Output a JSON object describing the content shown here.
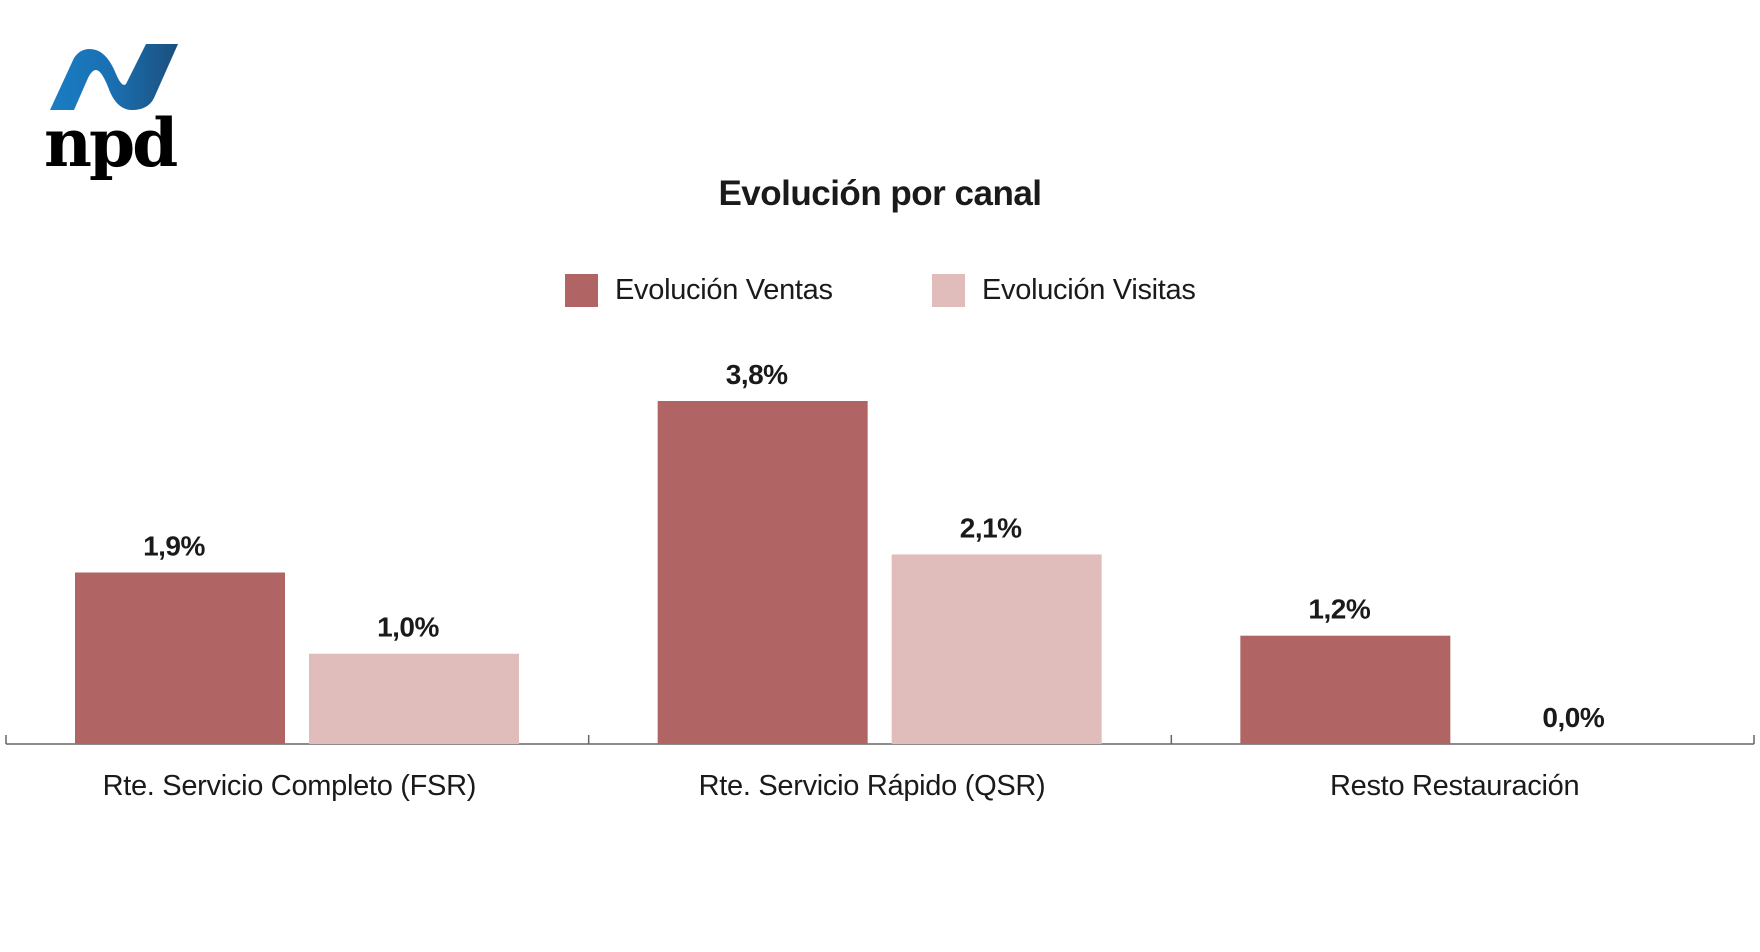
{
  "logo": {
    "text": "npd",
    "colors": [
      "#1a7dc4",
      "#1b4f7e",
      "#000000"
    ]
  },
  "chart_data": {
    "type": "bar",
    "title": "Evolución por canal",
    "categories": [
      "Rte. Servicio Completo (FSR)",
      "Rte. Servicio Rápido (QSR)",
      "Resto Restauración"
    ],
    "series": [
      {
        "name": "Evolución Ventas",
        "values": [
          1.9,
          3.8,
          1.2
        ],
        "labels": [
          "1,9%",
          "3,8%",
          "1,2%"
        ],
        "color": "#b06464"
      },
      {
        "name": "Evolución Visitas",
        "values": [
          1.0,
          2.1,
          0.0
        ],
        "labels": [
          "1,0%",
          "2,1%",
          "0,0%"
        ],
        "color": "#e0bdbb"
      }
    ],
    "unit": "%",
    "ylim": [
      0,
      4.2
    ],
    "grid": false,
    "legend": "top-center",
    "xlabel": "",
    "ylabel": ""
  }
}
